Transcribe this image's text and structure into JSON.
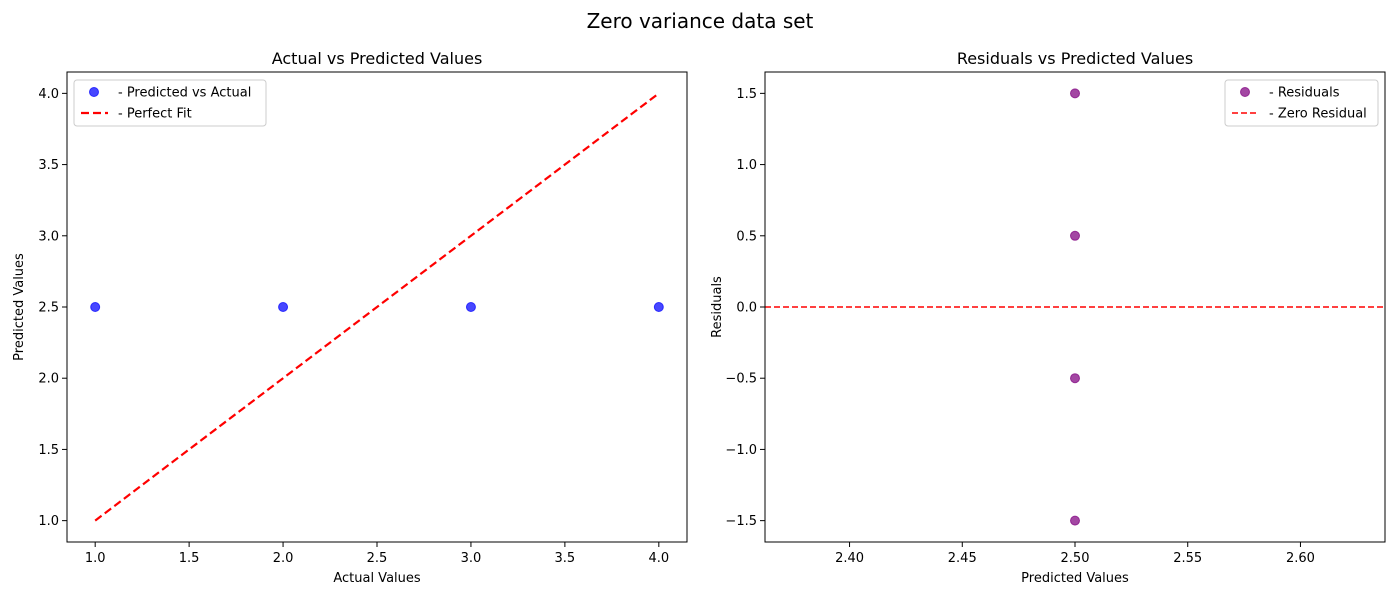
{
  "figure": {
    "title": "Zero variance data set"
  },
  "chart_data": [
    {
      "type": "scatter",
      "title": "Actual vs Predicted Values",
      "xlabel": "Actual Values",
      "ylabel": "Predicted Values",
      "xlim": [
        0.85,
        4.15
      ],
      "ylim": [
        0.85,
        4.15
      ],
      "xticks": [
        1.0,
        1.5,
        2.0,
        2.5,
        3.0,
        3.5,
        4.0
      ],
      "xtick_labels": [
        "1.0",
        "1.5",
        "2.0",
        "2.5",
        "3.0",
        "3.5",
        "4.0"
      ],
      "yticks": [
        1.0,
        1.5,
        2.0,
        2.5,
        3.0,
        3.5,
        4.0
      ],
      "ytick_labels": [
        "1.0",
        "1.5",
        "2.0",
        "2.5",
        "3.0",
        "3.5",
        "4.0"
      ],
      "grid": false,
      "legend": "upper-left",
      "series": [
        {
          "name": "- Predicted vs Actual",
          "kind": "points",
          "color": "#0000ff",
          "x": [
            1,
            2,
            3,
            4
          ],
          "y": [
            2.5,
            2.5,
            2.5,
            2.5
          ]
        },
        {
          "name": "- Perfect Fit",
          "kind": "dashed-line",
          "color": "#ff0000",
          "x": [
            1,
            4
          ],
          "y": [
            1,
            4
          ]
        }
      ]
    },
    {
      "type": "scatter",
      "title": "Residuals vs Predicted Values",
      "xlabel": "Predicted Values",
      "ylabel": "Residuals",
      "xlim": [
        2.3625,
        2.6375
      ],
      "ylim": [
        -1.65,
        1.65
      ],
      "xticks": [
        2.4,
        2.45,
        2.5,
        2.55,
        2.6
      ],
      "xtick_labels": [
        "2.40",
        "2.45",
        "2.50",
        "2.55",
        "2.60"
      ],
      "yticks": [
        -1.5,
        -1.0,
        -0.5,
        0.0,
        0.5,
        1.0,
        1.5
      ],
      "ytick_labels": [
        "−1.5",
        "−1.0",
        "−0.5",
        "0.0",
        "0.5",
        "1.0",
        "1.5"
      ],
      "grid": false,
      "legend": "upper-right",
      "series": [
        {
          "name": "- Residuals",
          "kind": "points",
          "color": "#800080",
          "x": [
            2.5,
            2.5,
            2.5,
            2.5
          ],
          "y": [
            -1.5,
            -0.5,
            0.5,
            1.5
          ]
        },
        {
          "name": "- Zero Residual",
          "kind": "hline",
          "color": "#ff0000",
          "y": 0
        }
      ]
    }
  ]
}
